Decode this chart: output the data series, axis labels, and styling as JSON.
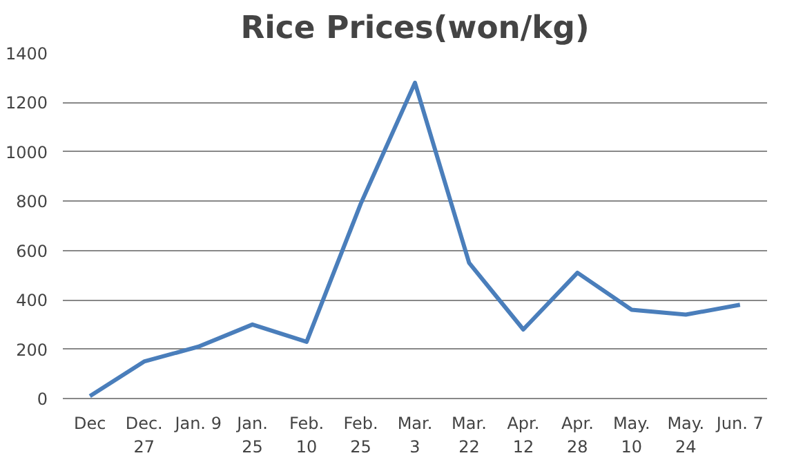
{
  "chart_data": {
    "type": "line",
    "title": "Rice Prices(won/kg)",
    "categories": [
      "Dec",
      "Dec.\n27",
      "Jan. 9",
      "Jan.\n25",
      "Feb.\n10",
      "Feb.\n25",
      "Mar.\n3",
      "Mar.\n22",
      "Apr.\n12",
      "Apr.\n28",
      "May.\n10",
      "May.\n24",
      "Jun. 7"
    ],
    "series": [
      {
        "color": "#4a7ebb",
        "values": [
          10,
          150,
          210,
          300,
          230,
          790,
          1280,
          550,
          280,
          510,
          360,
          340,
          380
        ]
      }
    ],
    "ylim": [
      0,
      1400
    ],
    "yticks": [
      0,
      200,
      400,
      600,
      800,
      1000,
      1200,
      1400
    ],
    "grid": "y",
    "marker": "none",
    "line_style": "solid"
  }
}
